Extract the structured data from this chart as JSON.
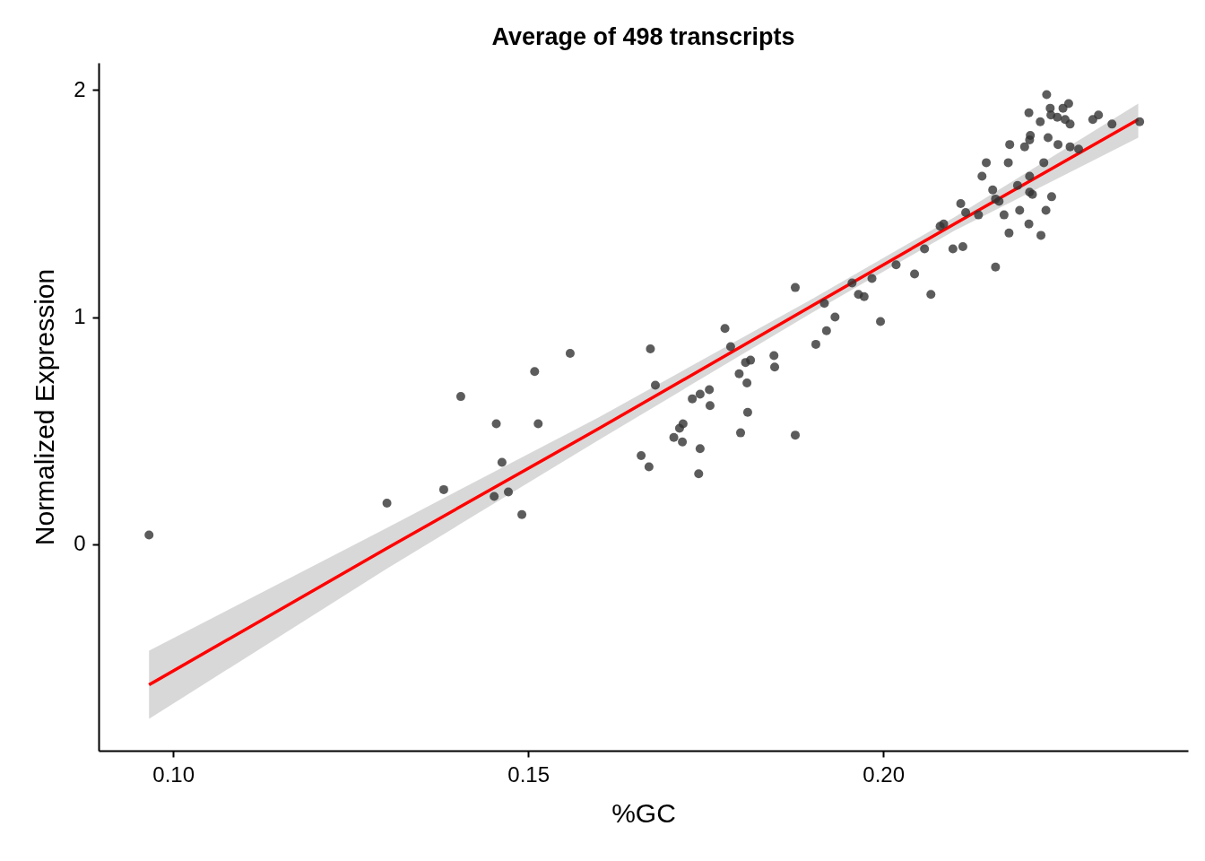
{
  "chart_data": {
    "type": "scatter",
    "title": "Average of 498 transcripts",
    "xlabel": "%GC",
    "ylabel": "Normalized Expression",
    "xlim": [
      0.0895,
      0.2429
    ],
    "ylim": [
      -0.91,
      2.12
    ],
    "xticks": [
      {
        "value": 0.1,
        "label": "0.10"
      },
      {
        "value": 0.15,
        "label": "0.15"
      },
      {
        "value": 0.2,
        "label": "0.20"
      }
    ],
    "yticks": [
      0,
      1,
      2
    ],
    "marker": "circle",
    "series": [
      {
        "color": "#333333",
        "x": [
          0.0966,
          0.1301,
          0.1381,
          0.1405,
          0.1455,
          0.1452,
          0.1463,
          0.1472,
          0.1491,
          0.1509,
          0.1514,
          0.1559,
          0.1659,
          0.167,
          0.1672,
          0.1679,
          0.1705,
          0.1713,
          0.1717,
          0.1718,
          0.1731,
          0.174,
          0.1742,
          0.1742,
          0.1755,
          0.1756,
          0.1777,
          0.1785,
          0.1797,
          0.1799,
          0.1806,
          0.1808,
          0.1809,
          0.1813,
          0.1846,
          0.1847,
          0.1876,
          0.1876,
          0.1905,
          0.1917,
          0.192,
          0.1932,
          0.1956,
          0.1965,
          0.1973,
          0.1984,
          0.1996,
          0.2018,
          0.2044,
          0.2058,
          0.2067,
          0.208,
          0.2085,
          0.2098,
          0.2109,
          0.2112,
          0.2116,
          0.2134,
          0.2139,
          0.2145,
          0.2154,
          0.2158,
          0.2158,
          0.2163,
          0.217,
          0.2177,
          0.2176,
          0.2178,
          0.2189,
          0.2192,
          0.2199,
          0.2205,
          0.2205,
          0.2206,
          0.2206,
          0.2207,
          0.2206,
          0.221,
          0.2221,
          0.2222,
          0.2226,
          0.2229,
          0.223,
          0.2232,
          0.2235,
          0.2236,
          0.2237,
          0.2245,
          0.2246,
          0.2253,
          0.2256,
          0.2261,
          0.2263,
          0.2263,
          0.2275,
          0.2295,
          0.2303,
          0.2322,
          0.2361
        ],
        "values": [
          0.04,
          0.18,
          0.24,
          0.65,
          0.53,
          0.21,
          0.36,
          0.23,
          0.13,
          0.76,
          0.53,
          0.84,
          0.39,
          0.34,
          0.86,
          0.7,
          0.47,
          0.51,
          0.45,
          0.53,
          0.64,
          0.31,
          0.66,
          0.42,
          0.68,
          0.61,
          0.95,
          0.87,
          0.75,
          0.49,
          0.8,
          0.71,
          0.58,
          0.81,
          0.83,
          0.78,
          1.13,
          0.48,
          0.88,
          1.06,
          0.94,
          1.0,
          1.15,
          1.1,
          1.09,
          1.17,
          0.98,
          1.23,
          1.19,
          1.3,
          1.1,
          1.4,
          1.41,
          1.3,
          1.5,
          1.31,
          1.46,
          1.45,
          1.62,
          1.68,
          1.56,
          1.22,
          1.52,
          1.51,
          1.45,
          1.37,
          1.68,
          1.76,
          1.58,
          1.47,
          1.75,
          1.41,
          1.9,
          1.62,
          1.55,
          1.8,
          1.78,
          1.54,
          1.86,
          1.36,
          1.68,
          1.47,
          1.98,
          1.79,
          1.92,
          1.89,
          1.53,
          1.88,
          1.76,
          1.92,
          1.87,
          1.94,
          1.85,
          1.75,
          1.74,
          1.87,
          1.89,
          1.85,
          1.86
        ]
      },
      {
        "type": "line",
        "color": "#ff0000",
        "marker": "none",
        "x": [
          0.0966,
          0.13,
          0.16,
          0.19,
          0.21,
          0.2359
        ],
        "values": [
          -0.62,
          -0.02,
          0.51,
          1.05,
          1.41,
          1.87
        ],
        "lower": [
          -0.77,
          -0.11,
          0.46,
          1.02,
          1.38,
          1.79
        ],
        "upper": [
          -0.47,
          0.07,
          0.56,
          1.08,
          1.44,
          1.94
        ]
      }
    ]
  }
}
